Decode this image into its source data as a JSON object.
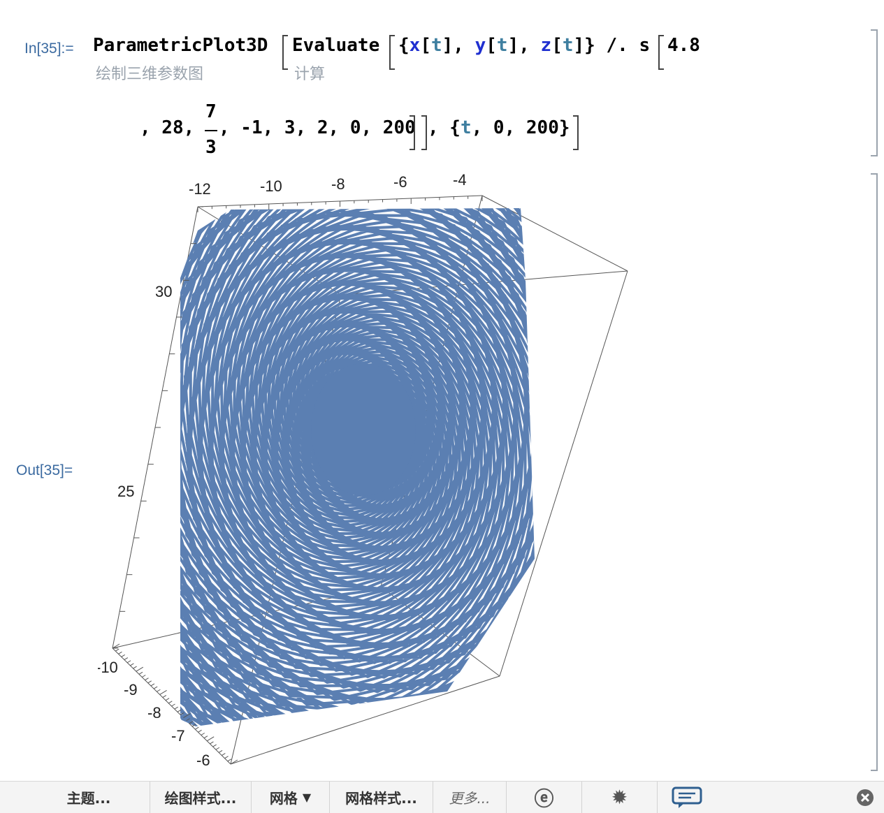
{
  "input": {
    "label": "In[35]:=",
    "line1": {
      "func": "ParametricPlot3D",
      "evaluate": "Evaluate",
      "open_brace": "{",
      "x": "x",
      "y": "y",
      "z": "z",
      "t": "t",
      "brk_open": "[",
      "brk_close": "]",
      "comma": ",",
      "close_brace": "}",
      "op": "/.",
      "s": "s",
      "first_arg": "4.8"
    },
    "hint_plot": "绘制三维参数图",
    "hint_eval": "计算",
    "line2": {
      "part_a": ", 28,",
      "frac_num": "7",
      "frac_den": "3",
      "part_b": ", -1, 3, 2, 0, 200",
      "part_c": ", {",
      "t": "t",
      "part_d": ", 0, 200}"
    }
  },
  "output": {
    "label": "Out[35]="
  },
  "plot": {
    "curve_color": "#5b7fb2",
    "top_ticks": [
      "-12",
      "-10",
      "-8",
      "-6",
      "-4"
    ],
    "z_ticks": [
      "30",
      "25"
    ],
    "left_ticks": [
      "-10",
      "-9",
      "-8",
      "-7",
      "-6"
    ]
  },
  "toolbar": {
    "theme": "主题...",
    "plot_style": "绘图样式...",
    "grid": "网格",
    "grid_arrow": "▼",
    "grid_style": "网格样式...",
    "more": "更多..."
  }
}
